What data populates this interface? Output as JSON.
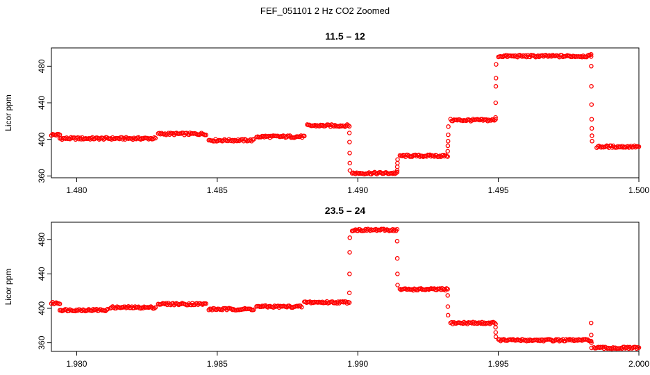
{
  "figure": {
    "title": "FEF_051101  2 Hz CO2 Zoomed"
  },
  "chart_data": [
    {
      "type": "scatter",
      "title": "11.5 – 12",
      "xlabel": "",
      "ylabel": "Licor ppm",
      "xlim": [
        1.4791,
        1.5
      ],
      "ylim": [
        358,
        500
      ],
      "xticks": [
        1.48,
        1.485,
        1.49,
        1.495,
        1.5
      ],
      "xtick_labels": [
        "1.480",
        "1.485",
        "1.490",
        "1.495",
        "1.500"
      ],
      "yticks": [
        360,
        400,
        440,
        480
      ],
      "ytick_labels": [
        "360",
        "400",
        "440",
        "480"
      ],
      "marker": "open-circle",
      "color": "#ff0000",
      "segments": [
        {
          "x0": 1.4791,
          "x1": 1.4794,
          "y": 405
        },
        {
          "x0": 1.4794,
          "x1": 1.4828,
          "y": 401
        },
        {
          "x0": 1.4829,
          "x1": 1.4846,
          "y": 406
        },
        {
          "x0": 1.4847,
          "x1": 1.4863,
          "y": 399
        },
        {
          "x0": 1.4864,
          "x1": 1.4881,
          "y": 403
        },
        {
          "x0": 1.4882,
          "x1": 1.4897,
          "y": 415
        },
        {
          "x0": 1.4898,
          "x1": 1.4914,
          "y": 363
        },
        {
          "x0": 1.4915,
          "x1": 1.4932,
          "y": 382
        },
        {
          "x0": 1.4933,
          "x1": 1.4949,
          "y": 421
        },
        {
          "x0": 1.495,
          "x1": 1.4983,
          "y": 491
        },
        {
          "x0": 1.4985,
          "x1": 1.5,
          "y": 392
        }
      ],
      "transitions": [
        {
          "x": 1.4897,
          "y": [
            407,
            397,
            385,
            374,
            366
          ]
        },
        {
          "x": 1.4914,
          "y": [
            366,
            370,
            374,
            378
          ]
        },
        {
          "x": 1.4932,
          "y": [
            387,
            393,
            398,
            405,
            414
          ]
        },
        {
          "x": 1.4949,
          "y": [
            424,
            440,
            458,
            467,
            482
          ]
        },
        {
          "x": 1.4983,
          "y": [
            493,
            480,
            458,
            438,
            422,
            412,
            404,
            398
          ]
        }
      ]
    },
    {
      "type": "scatter",
      "title": "23.5 – 24",
      "xlabel": "",
      "ylabel": "Licor ppm",
      "xlim": [
        1.9791,
        2.0
      ],
      "ylim": [
        350,
        500
      ],
      "xticks": [
        1.98,
        1.985,
        1.99,
        1.995,
        2.0
      ],
      "xtick_labels": [
        "1.980",
        "1.985",
        "1.990",
        "1.995",
        "2.000"
      ],
      "yticks": [
        360,
        400,
        440,
        480
      ],
      "ytick_labels": [
        "360",
        "400",
        "440",
        "480"
      ],
      "marker": "open-circle",
      "color": "#ff0000",
      "segments": [
        {
          "x0": 1.9791,
          "x1": 1.9794,
          "y": 406
        },
        {
          "x0": 1.9794,
          "x1": 1.9811,
          "y": 398
        },
        {
          "x0": 1.9812,
          "x1": 1.9828,
          "y": 401
        },
        {
          "x0": 1.9829,
          "x1": 1.9846,
          "y": 405
        },
        {
          "x0": 1.9847,
          "x1": 1.9863,
          "y": 399
        },
        {
          "x0": 1.9864,
          "x1": 1.988,
          "y": 402
        },
        {
          "x0": 1.9881,
          "x1": 1.9897,
          "y": 407
        },
        {
          "x0": 1.9898,
          "x1": 1.9914,
          "y": 491
        },
        {
          "x0": 1.9915,
          "x1": 1.9932,
          "y": 422
        },
        {
          "x0": 1.9933,
          "x1": 1.9949,
          "y": 383
        },
        {
          "x0": 1.995,
          "x1": 1.9983,
          "y": 363
        },
        {
          "x0": 1.9984,
          "x1": 2.0,
          "y": 354
        }
      ],
      "transitions": [
        {
          "x": 1.9897,
          "y": [
            418,
            440,
            465,
            482
          ]
        },
        {
          "x": 1.9914,
          "y": [
            478,
            458,
            440,
            427
          ]
        },
        {
          "x": 1.9932,
          "y": [
            415,
            402,
            392
          ]
        },
        {
          "x": 1.9949,
          "y": [
            378,
            372,
            367
          ]
        },
        {
          "x": 1.9983,
          "y": [
            383,
            369,
            360,
            354
          ]
        }
      ]
    }
  ]
}
